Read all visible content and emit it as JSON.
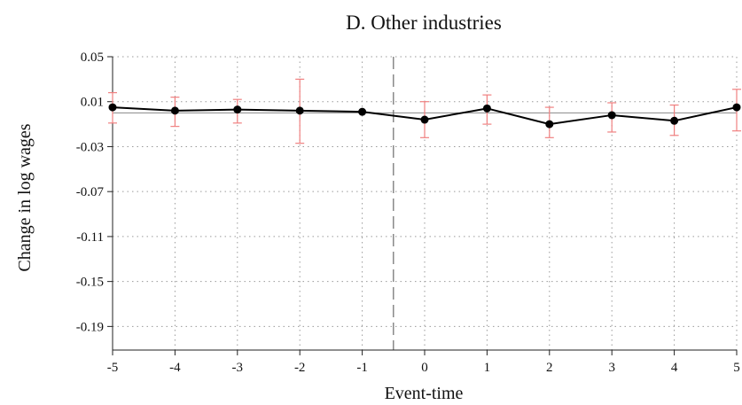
{
  "chart_data": {
    "type": "line",
    "title": "D. Other industries",
    "xlabel": "Event-time",
    "ylabel": "Change in log wages",
    "x": [
      -5,
      -4,
      -3,
      -2,
      -1,
      0,
      1,
      2,
      3,
      4,
      5
    ],
    "x_ticks": [
      "-5",
      "-4",
      "-3",
      "-2",
      "-1",
      "0",
      "1",
      "2",
      "3",
      "4",
      "5"
    ],
    "y_ticks": [
      "0.05",
      "0.01",
      "-0.03",
      "-0.07",
      "-0.11",
      "-0.15",
      "-0.19"
    ],
    "xlim": [
      -5,
      5
    ],
    "ylim": [
      -0.211,
      0.05
    ],
    "grid": true,
    "reference_line_y": 0,
    "event_line_x": -0.5,
    "series": [
      {
        "values": [
          0.005,
          0.002,
          0.003,
          0.002,
          0.001,
          -0.006,
          0.004,
          -0.01,
          -0.002,
          -0.007,
          0.005
        ],
        "ci_low": [
          -0.009,
          -0.012,
          -0.009,
          -0.027,
          0.001,
          -0.022,
          -0.01,
          -0.022,
          -0.017,
          -0.02,
          -0.016
        ],
        "ci_high": [
          0.018,
          0.014,
          0.012,
          0.03,
          0.001,
          0.01,
          0.016,
          0.005,
          0.009,
          0.007,
          0.021
        ],
        "line_color": "#000000",
        "ci_color": "#f08080"
      }
    ]
  }
}
